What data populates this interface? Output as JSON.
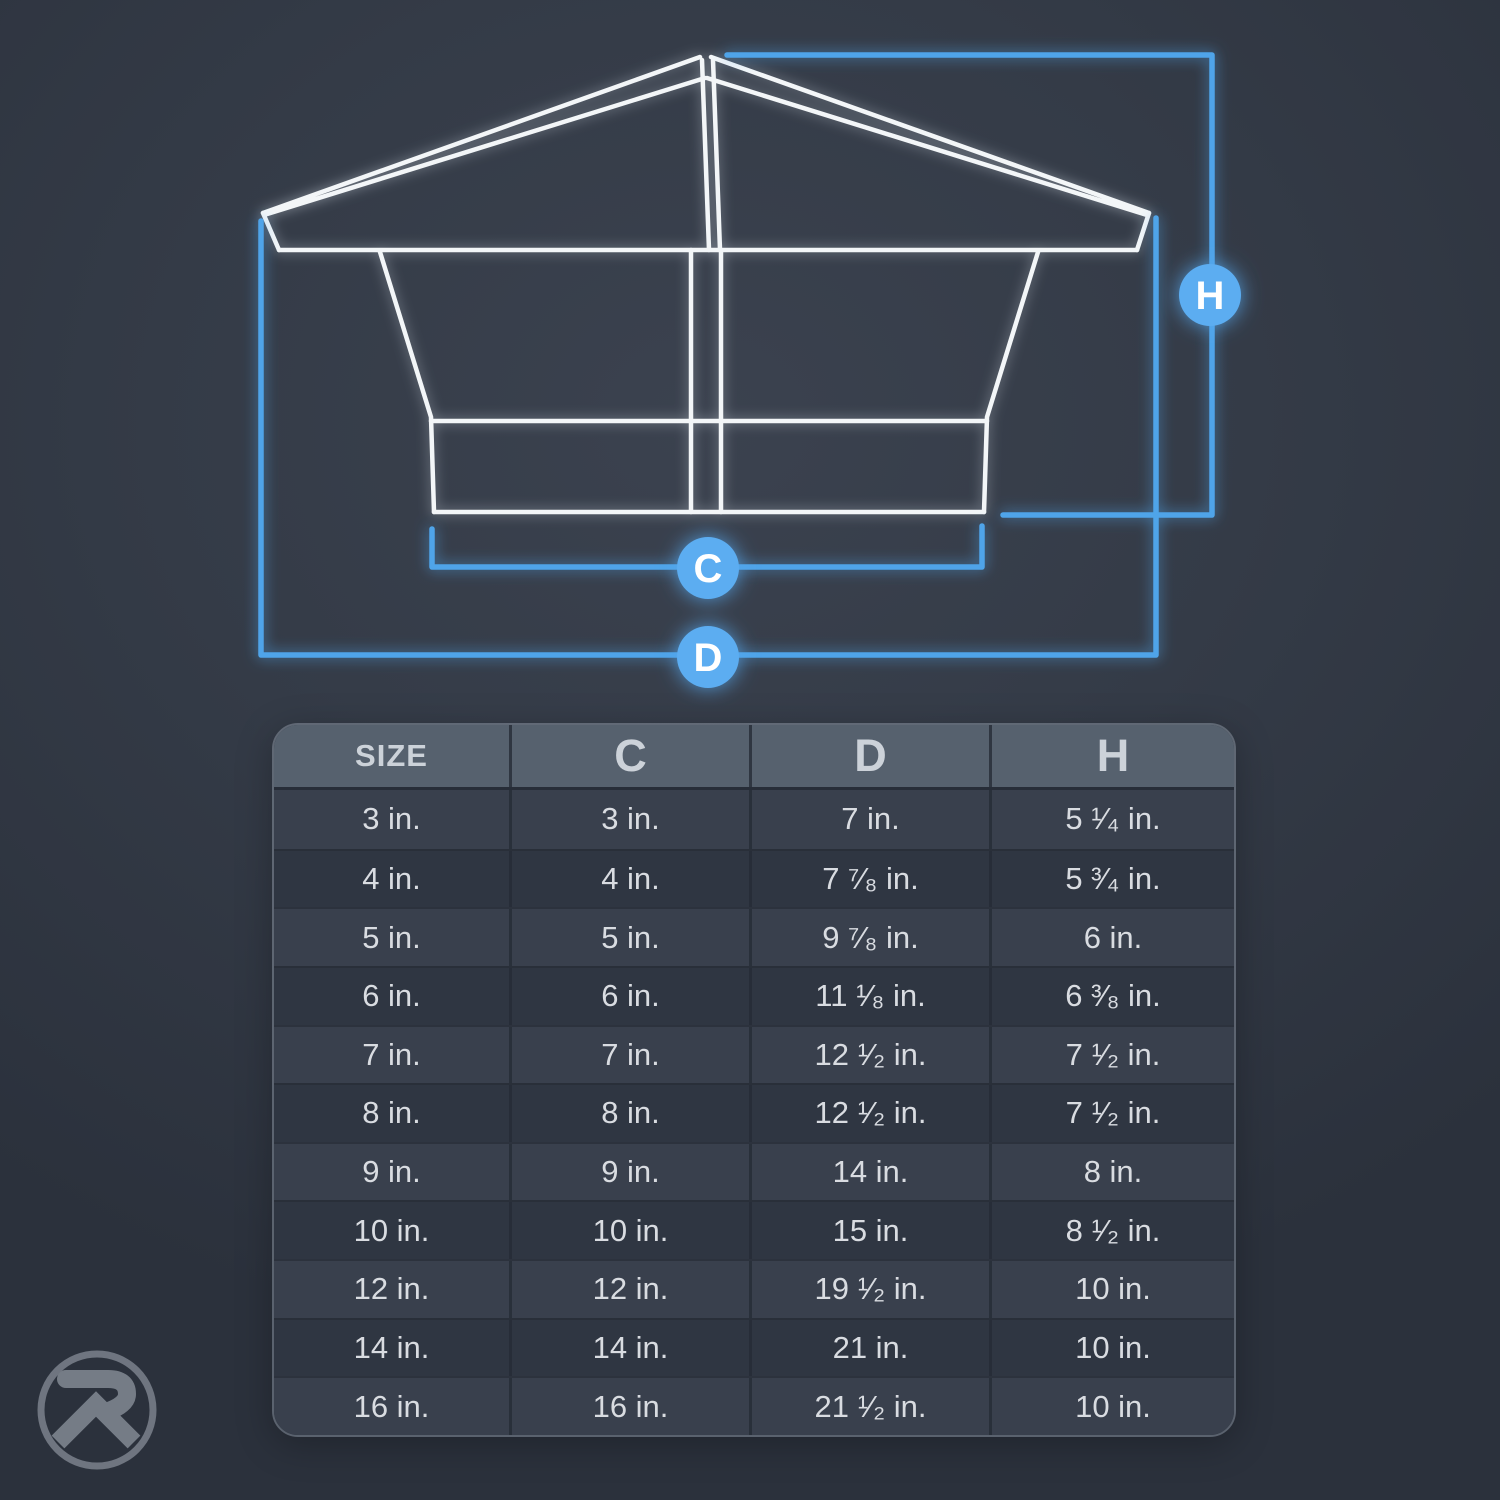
{
  "diagram": {
    "labels": {
      "h": "H",
      "c": "C",
      "d": "D"
    },
    "accent_color": "#55a9ee",
    "line_color": "#f3f6f8"
  },
  "table": {
    "columns": [
      "SIZE",
      "C",
      "D",
      "H"
    ],
    "rows": [
      [
        "3 in.",
        "3 in.",
        "7 in.",
        "5 ¹⁄₄ in."
      ],
      [
        "4 in.",
        "4 in.",
        "7 ⁷⁄₈ in.",
        "5 ³⁄₄ in."
      ],
      [
        "5 in.",
        "5 in.",
        "9 ⁷⁄₈ in.",
        "6 in."
      ],
      [
        "6 in.",
        "6 in.",
        "11 ¹⁄₈ in.",
        "6 ³⁄₈ in."
      ],
      [
        "7 in.",
        "7 in.",
        "12 ¹⁄₂ in.",
        "7 ¹⁄₂ in."
      ],
      [
        "8 in.",
        "8 in.",
        "12 ¹⁄₂ in.",
        "7 ¹⁄₂ in."
      ],
      [
        "9 in.",
        "9 in.",
        "14 in.",
        "8 in."
      ],
      [
        "10 in.",
        "10 in.",
        "15 in.",
        "8 ¹⁄₂ in."
      ],
      [
        "12 in.",
        "12 in.",
        "19 ¹⁄₂ in.",
        "10 in."
      ],
      [
        "14 in.",
        "14 in.",
        "21 in.",
        "10 in."
      ],
      [
        "16 in.",
        "16 in.",
        "21 ¹⁄₂ in.",
        "10 in."
      ]
    ]
  }
}
